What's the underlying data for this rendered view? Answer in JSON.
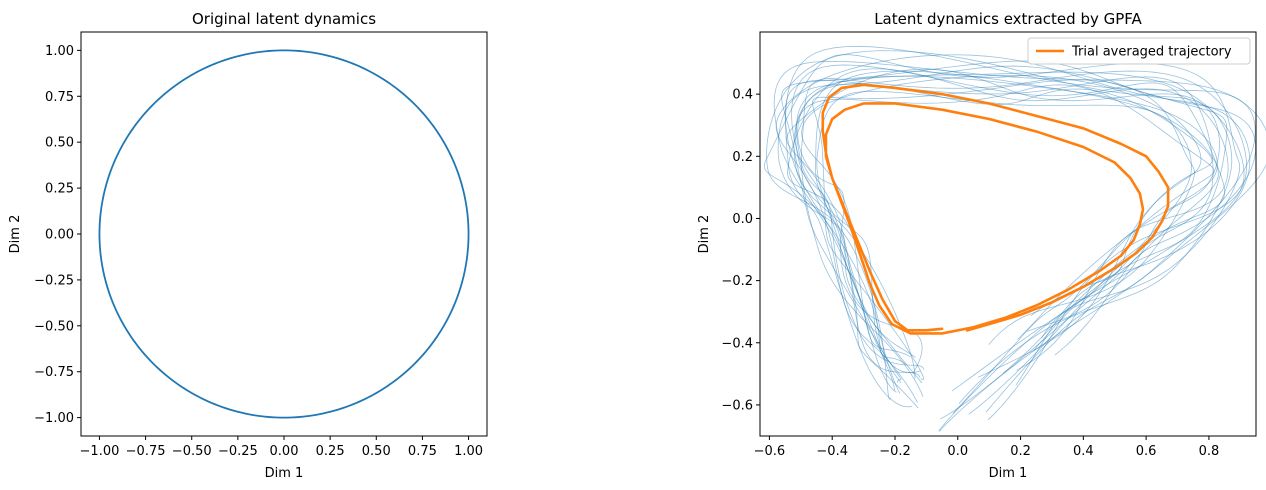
{
  "colors": {
    "trial": "#1f77b4",
    "average": "#ff7f0e",
    "circle": "#1f77b4",
    "frame": "#000000"
  },
  "chart_data": [
    {
      "type": "line",
      "title": "Original latent dynamics",
      "xlabel": "Dim 1",
      "ylabel": "Dim 2",
      "xlim": [
        -1.1,
        1.1
      ],
      "ylim": [
        -1.1,
        1.1
      ],
      "xticks": [
        -1.0,
        -0.75,
        -0.5,
        -0.25,
        0.0,
        0.25,
        0.5,
        0.75,
        1.0
      ],
      "xtick_labels": [
        "−1.00",
        "−0.75",
        "−0.50",
        "−0.25",
        "0.00",
        "0.25",
        "0.50",
        "0.75",
        "1.00"
      ],
      "yticks": [
        1.0,
        0.75,
        0.5,
        0.25,
        0.0,
        -0.25,
        -0.5,
        -0.75,
        -1.0
      ],
      "ytick_labels": [
        "1.00",
        "0.75",
        "0.50",
        "0.25",
        "0.00",
        "−0.25",
        "−0.50",
        "−0.75",
        "−1.00"
      ],
      "series": [
        {
          "name": "latent circle",
          "shape": "unit circle",
          "radius": 1.0
        }
      ]
    },
    {
      "type": "line",
      "title": "Latent dynamics extracted by GPFA",
      "xlabel": "Dim 1",
      "ylabel": "Dim 2",
      "xlim": [
        -0.63,
        0.95
      ],
      "ylim": [
        -0.7,
        0.6
      ],
      "xticks": [
        -0.6,
        -0.4,
        -0.2,
        0.0,
        0.2,
        0.4,
        0.6,
        0.8
      ],
      "xtick_labels": [
        "−0.6",
        "−0.4",
        "−0.2",
        "0.0",
        "0.2",
        "0.4",
        "0.6",
        "0.8"
      ],
      "yticks": [
        0.4,
        0.2,
        0.0,
        -0.2,
        -0.4,
        -0.6
      ],
      "ytick_labels": [
        "0.4",
        "0.2",
        "0.0",
        "−0.2",
        "−0.4",
        "−0.6"
      ],
      "legend": {
        "position": "top-right",
        "entries": [
          "Trial averaged trajectory"
        ]
      },
      "series": [
        {
          "name": "single-trial trajectories",
          "count": 20,
          "color_ref": "trial",
          "approx_path": [
            [
              -0.02,
              -0.65
            ],
            [
              0.3,
              -0.35
            ],
            [
              0.6,
              -0.1
            ],
            [
              0.85,
              0.15
            ],
            [
              0.7,
              0.38
            ],
            [
              0.2,
              0.44
            ],
            [
              -0.4,
              0.44
            ],
            [
              -0.52,
              0.2
            ],
            [
              -0.4,
              -0.05
            ],
            [
              -0.25,
              -0.38
            ],
            [
              -0.15,
              -0.53
            ]
          ]
        },
        {
          "name": "Trial averaged trajectory",
          "color_ref": "average",
          "points": [
            [
              -0.05,
              -0.355
            ],
            [
              -0.1,
              -0.36
            ],
            [
              -0.16,
              -0.36
            ],
            [
              -0.2,
              -0.33
            ],
            [
              -0.24,
              -0.26
            ],
            [
              -0.28,
              -0.17
            ],
            [
              -0.32,
              -0.07
            ],
            [
              -0.36,
              0.03
            ],
            [
              -0.4,
              0.13
            ],
            [
              -0.42,
              0.2
            ],
            [
              -0.42,
              0.27
            ],
            [
              -0.4,
              0.32
            ],
            [
              -0.36,
              0.35
            ],
            [
              -0.3,
              0.37
            ],
            [
              -0.2,
              0.37
            ],
            [
              -0.05,
              0.35
            ],
            [
              0.1,
              0.32
            ],
            [
              0.25,
              0.28
            ],
            [
              0.4,
              0.23
            ],
            [
              0.5,
              0.18
            ],
            [
              0.55,
              0.13
            ],
            [
              0.58,
              0.08
            ],
            [
              0.59,
              0.03
            ],
            [
              0.58,
              -0.02
            ],
            [
              0.56,
              -0.07
            ],
            [
              0.52,
              -0.12
            ],
            [
              0.45,
              -0.17
            ],
            [
              0.35,
              -0.23
            ],
            [
              0.25,
              -0.28
            ],
            [
              0.15,
              -0.32
            ],
            [
              0.05,
              -0.35
            ],
            [
              -0.05,
              -0.37
            ],
            [
              -0.15,
              -0.37
            ],
            [
              -0.21,
              -0.34
            ],
            [
              -0.25,
              -0.28
            ],
            [
              -0.28,
              -0.21
            ],
            [
              -0.31,
              -0.12
            ],
            [
              -0.34,
              -0.03
            ],
            [
              -0.37,
              0.05
            ],
            [
              -0.4,
              0.13
            ],
            [
              -0.42,
              0.21
            ],
            [
              -0.43,
              0.28
            ],
            [
              -0.43,
              0.34
            ],
            [
              -0.41,
              0.39
            ],
            [
              -0.37,
              0.42
            ],
            [
              -0.3,
              0.43
            ],
            [
              -0.2,
              0.42
            ],
            [
              -0.05,
              0.4
            ],
            [
              0.1,
              0.37
            ],
            [
              0.25,
              0.33
            ],
            [
              0.4,
              0.29
            ],
            [
              0.52,
              0.24
            ],
            [
              0.6,
              0.2
            ],
            [
              0.64,
              0.15
            ],
            [
              0.67,
              0.1
            ],
            [
              0.67,
              0.04
            ],
            [
              0.65,
              -0.01
            ],
            [
              0.62,
              -0.06
            ],
            [
              0.57,
              -0.11
            ],
            [
              0.5,
              -0.16
            ],
            [
              0.4,
              -0.22
            ],
            [
              0.3,
              -0.27
            ],
            [
              0.2,
              -0.31
            ],
            [
              0.1,
              -0.34
            ],
            [
              0.03,
              -0.36
            ]
          ]
        }
      ]
    }
  ]
}
